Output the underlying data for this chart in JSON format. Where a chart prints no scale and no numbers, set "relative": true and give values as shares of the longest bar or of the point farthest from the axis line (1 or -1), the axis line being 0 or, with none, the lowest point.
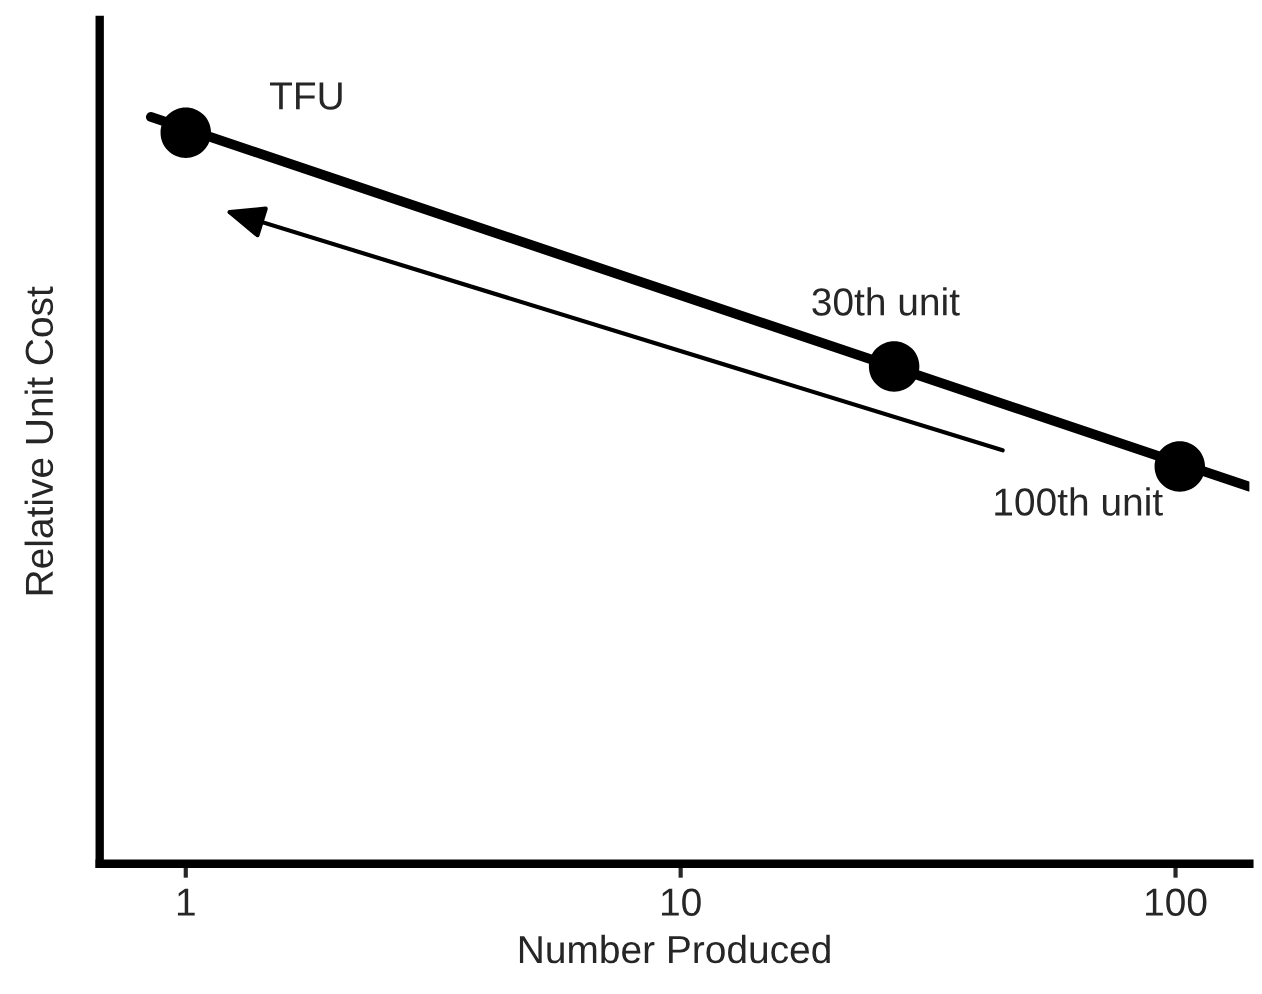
{
  "chart_data": {
    "type": "line",
    "relative": true,
    "xlabel": "Number Produced",
    "ylabel": "Relative Unit Cost",
    "log": "x",
    "xlim": [
      0.67,
      141
    ],
    "xticks": [
      1,
      10,
      100
    ],
    "tick_labels": "x",
    "grid": false,
    "legend": false,
    "series": [
      {
        "color": "#000000",
        "x": [
          0.85,
          141
        ],
        "values": [
          1,
          0.505
        ],
        "marker": "none",
        "line_style": "solid"
      },
      {
        "type": "scatter",
        "color": "#000000",
        "x": [
          1,
          27,
          102
        ],
        "values": [
          0.979,
          0.666,
          0.532
        ],
        "marker": "circle"
      }
    ],
    "annotations": [
      {
        "text": "TFU",
        "x": 1,
        "y": 0.979
      },
      {
        "text": "30th unit",
        "x": 27,
        "y": 0.666
      },
      {
        "text": "100th unit",
        "x": 102,
        "y": 0.532
      }
    ]
  }
}
